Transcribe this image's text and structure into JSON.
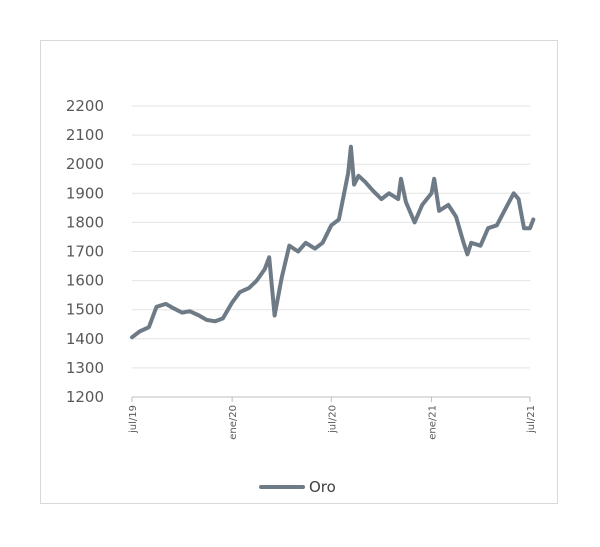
{
  "chart_data": {
    "type": "line",
    "title": "",
    "xlabel": "",
    "ylabel": "",
    "ylim": [
      1200,
      2200
    ],
    "y_ticks": [
      "2200",
      "2100",
      "2000",
      "1900",
      "1800",
      "1700",
      "1600",
      "1500",
      "1400",
      "1300",
      "1200"
    ],
    "x_ticks": [
      "jul/19",
      "ene/20",
      "jul/20",
      "ene/21",
      "jul/21"
    ],
    "grid": true,
    "legend_position": "bottom",
    "line_color": "#6e7b86",
    "series": [
      {
        "name": "Oro",
        "x": [
          "2019-07-01",
          "2019-07-15",
          "2019-08-01",
          "2019-08-15",
          "2019-09-01",
          "2019-09-15",
          "2019-10-01",
          "2019-10-15",
          "2019-11-01",
          "2019-11-15",
          "2019-12-01",
          "2019-12-15",
          "2020-01-01",
          "2020-01-15",
          "2020-02-01",
          "2020-02-15",
          "2020-03-01",
          "2020-03-09",
          "2020-03-19",
          "2020-04-01",
          "2020-04-15",
          "2020-05-01",
          "2020-05-15",
          "2020-06-01",
          "2020-06-15",
          "2020-07-01",
          "2020-07-15",
          "2020-08-01",
          "2020-08-06",
          "2020-08-12",
          "2020-08-20",
          "2020-09-01",
          "2020-09-15",
          "2020-10-01",
          "2020-10-15",
          "2020-11-01",
          "2020-11-06",
          "2020-11-15",
          "2020-12-01",
          "2020-12-15",
          "2021-01-01",
          "2021-01-06",
          "2021-01-15",
          "2021-02-01",
          "2021-02-15",
          "2021-03-01",
          "2021-03-08",
          "2021-03-15",
          "2021-04-01",
          "2021-04-15",
          "2021-05-01",
          "2021-05-15",
          "2021-06-01",
          "2021-06-10",
          "2021-06-20",
          "2021-07-01",
          "2021-07-07"
        ],
        "values": [
          1405,
          1425,
          1440,
          1510,
          1520,
          1505,
          1490,
          1495,
          1480,
          1465,
          1460,
          1470,
          1525,
          1560,
          1575,
          1600,
          1640,
          1680,
          1480,
          1610,
          1720,
          1700,
          1730,
          1710,
          1730,
          1790,
          1810,
          1970,
          2060,
          1930,
          1960,
          1940,
          1910,
          1880,
          1900,
          1880,
          1950,
          1870,
          1800,
          1860,
          1900,
          1950,
          1840,
          1860,
          1820,
          1730,
          1690,
          1730,
          1720,
          1780,
          1790,
          1840,
          1900,
          1880,
          1780,
          1780,
          1810
        ]
      }
    ]
  }
}
